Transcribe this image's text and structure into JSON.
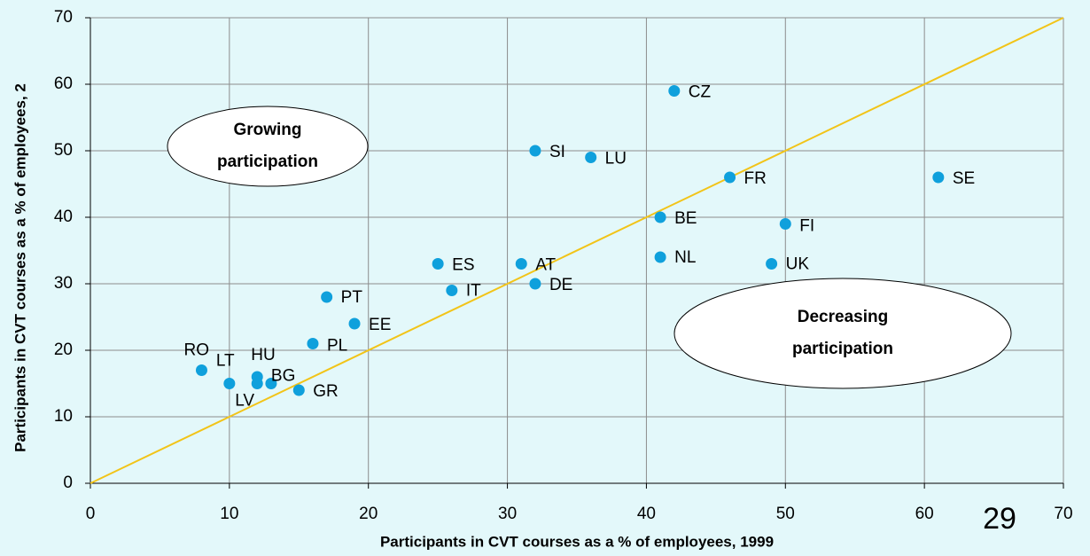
{
  "chart_data": {
    "type": "scatter",
    "xlabel": "Participants in CVT courses as a % of employees, 1999",
    "ylabel": "Participants in CVT courses as a % of employees, 2",
    "labels": [
      "CZ",
      "SI",
      "LU",
      "FR",
      "SE",
      "BE",
      "FI",
      "NL",
      "UK",
      "ES",
      "AT",
      "IT",
      "DE",
      "PT",
      "EE",
      "PL",
      "RO",
      "LT",
      "HU",
      "LV",
      "BG",
      "GR"
    ],
    "x": [
      42,
      32,
      36,
      46,
      61,
      41,
      50,
      41,
      49,
      25,
      31,
      26,
      32,
      17,
      19,
      16,
      8,
      10,
      12,
      12,
      13,
      15
    ],
    "y": [
      59,
      50,
      49,
      46,
      46,
      40,
      39,
      34,
      33,
      33,
      33,
      29,
      30,
      28,
      24,
      21,
      17,
      15,
      16,
      15,
      15,
      14
    ],
    "color": "#0fa0dc",
    "xlim": [
      0,
      70
    ],
    "ylim": [
      0,
      70
    ],
    "xticks": [
      0,
      10,
      20,
      30,
      40,
      50,
      60,
      70
    ],
    "yticks": [
      0,
      10,
      20,
      30,
      40,
      50,
      60,
      70
    ],
    "grid": true,
    "annotations": [
      [
        "Growing",
        "participation"
      ],
      [
        "Decreasing",
        "participation"
      ]
    ],
    "page_number": "29"
  }
}
